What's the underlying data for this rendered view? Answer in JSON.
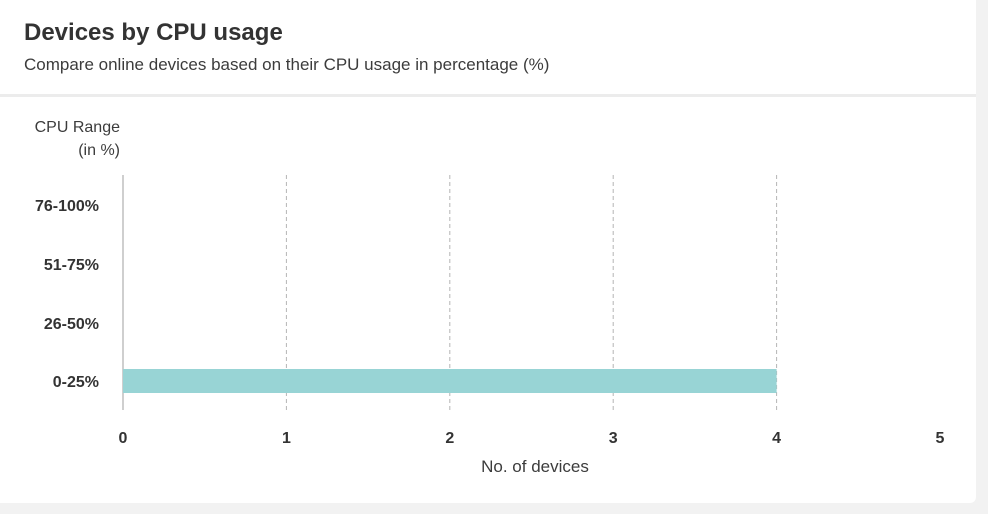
{
  "card": {
    "title": "Devices by CPU usage",
    "subtitle": "Compare online devices based on their CPU usage in percentage (%)"
  },
  "chart_data": {
    "type": "bar",
    "orientation": "horizontal",
    "title": "Devices by CPU usage",
    "subtitle": "Compare online devices based on their CPU usage in percentage (%)",
    "ylabel_lines": [
      "CPU Range",
      "(in %)"
    ],
    "xlabel": "No. of devices",
    "categories": [
      "76-100%",
      "51-75%",
      "26-50%",
      "0-25%"
    ],
    "values": [
      0,
      0,
      0,
      4
    ],
    "xlim": [
      0,
      5
    ],
    "xticks": [
      0,
      1,
      2,
      3,
      4,
      5
    ],
    "grid": "vertical dashed",
    "bar_color": "#98d4d5"
  }
}
